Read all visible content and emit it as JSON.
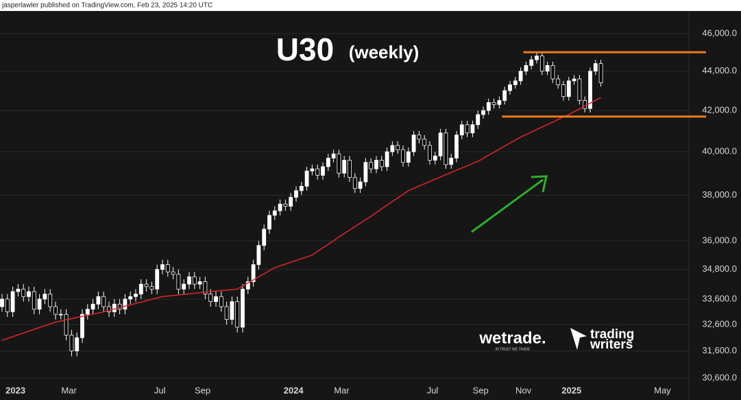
{
  "header": {
    "byline": "jasperlawler published on TradingView.com, Feb 23, 2025 14:20 UTC"
  },
  "logos": {
    "wetrade": "wetrade.",
    "wetrade_tagline": "IN TRUST WE TRADE",
    "trading": "trading",
    "writers": "writers"
  },
  "chart_data": {
    "type": "candlestick",
    "title": "U30",
    "subtitle": "(weekly)",
    "log_scale": true,
    "up_color": "#ffffff",
    "down_color": "#000000",
    "wick_color": "#ffffff",
    "grid": true,
    "ylim": [
      30430,
      47250
    ],
    "yticks": [
      {
        "value": 30600,
        "label": "30,600.0"
      },
      {
        "value": 31600,
        "label": "31,600.0"
      },
      {
        "value": 32600,
        "label": "32,600.0"
      },
      {
        "value": 33600,
        "label": "33,600.0"
      },
      {
        "value": 34800,
        "label": "34,800.0"
      },
      {
        "value": 36000,
        "label": "36,000.0"
      },
      {
        "value": 38000,
        "label": "38,000.0"
      },
      {
        "value": 40000,
        "label": "40,000.0"
      },
      {
        "value": 42000,
        "label": "42,000.0"
      },
      {
        "value": 44000,
        "label": "44,000.0"
      },
      {
        "value": 46000,
        "label": "46,000.0"
      }
    ],
    "categories": [
      null,
      null,
      "2023",
      null,
      null,
      null,
      null,
      null,
      null,
      null,
      null,
      null,
      "Mar",
      null,
      null,
      null,
      null,
      null,
      null,
      null,
      null,
      null,
      null,
      null,
      null,
      null,
      null,
      null,
      null,
      "Jul",
      null,
      null,
      null,
      null,
      null,
      null,
      null,
      "Sep",
      null,
      null,
      null,
      null,
      null,
      null,
      null,
      null,
      null,
      null,
      null,
      null,
      null,
      null,
      null,
      null,
      "2024",
      null,
      null,
      null,
      null,
      null,
      null,
      null,
      null,
      "Mar",
      null,
      null,
      null,
      null,
      null,
      null,
      null,
      null,
      null,
      null,
      null,
      null,
      null,
      null,
      null,
      null,
      "Jul",
      null,
      null,
      null,
      null,
      null,
      null,
      null,
      null,
      "Sep",
      null,
      null,
      null,
      null,
      null,
      null,
      null,
      "Nov",
      null,
      null,
      null,
      null,
      null,
      null,
      null,
      null,
      "2025",
      null,
      null,
      null,
      null,
      null,
      null,
      null,
      null,
      null,
      null,
      null,
      null,
      null,
      null,
      null,
      null,
      "May"
    ],
    "open": [
      33300,
      33600,
      33100,
      33900,
      34000,
      33700,
      33900,
      33200,
      33600,
      33800,
      33300,
      33000,
      33000,
      32200,
      31600,
      32100,
      33000,
      33200,
      33400,
      33700,
      33300,
      33100,
      33400,
      33200,
      33600,
      33700,
      33800,
      34200,
      34100,
      34000,
      34800,
      35000,
      34700,
      34600,
      34000,
      34200,
      34500,
      34200,
      34300,
      33800,
      33500,
      33700,
      33300,
      32800,
      33500,
      32500,
      34000,
      34300,
      35000,
      35800,
      36500,
      37100,
      37300,
      37600,
      37500,
      37900,
      38200,
      38400,
      39100,
      39200,
      38900,
      39300,
      39700,
      39900,
      39000,
      39600,
      38800,
      38300,
      38600,
      39500,
      39200,
      39600,
      39300,
      40000,
      40300,
      40100,
      39500,
      40000,
      40800,
      40600,
      40300,
      39600,
      39800,
      40900,
      39400,
      39700,
      40800,
      41300,
      40900,
      41300,
      41800,
      42000,
      42400,
      42300,
      42500,
      43000,
      43300,
      43500,
      44000,
      44300,
      44600,
      44800,
      44000,
      44300,
      43600,
      43300,
      42700,
      43500,
      43600,
      42500,
      42100,
      44000,
      44400,
      null,
      null,
      null,
      null,
      null,
      null,
      null,
      null,
      null,
      null,
      null
    ],
    "high": [
      33800,
      33800,
      34100,
      34200,
      34200,
      34100,
      34100,
      33800,
      34000,
      34000,
      33500,
      33200,
      33200,
      32400,
      32300,
      33200,
      33400,
      33600,
      33900,
      33900,
      33500,
      33600,
      33600,
      33800,
      33900,
      34000,
      34400,
      34400,
      34300,
      35000,
      35200,
      35200,
      34900,
      34800,
      34400,
      34700,
      34700,
      34500,
      34500,
      34000,
      33900,
      33900,
      33500,
      33700,
      33700,
      34200,
      34500,
      35200,
      36000,
      36700,
      37300,
      37500,
      37800,
      37800,
      38100,
      38400,
      38600,
      39300,
      39400,
      39400,
      39500,
      39900,
      40100,
      40100,
      39800,
      39800,
      39000,
      38800,
      39700,
      39700,
      39800,
      39800,
      40200,
      40500,
      40500,
      40300,
      40200,
      41000,
      41000,
      40800,
      40500,
      40000,
      41100,
      41100,
      39900,
      41000,
      41500,
      41500,
      41500,
      42000,
      42200,
      42600,
      42600,
      42700,
      43200,
      43500,
      43700,
      44200,
      44500,
      44800,
      45000,
      45000,
      44500,
      44500,
      43800,
      43500,
      43700,
      43800,
      43800,
      42700,
      44200,
      44600,
      44600,
      null,
      null,
      null,
      null,
      null,
      null,
      null,
      null,
      null,
      null,
      null
    ],
    "low": [
      33100,
      32900,
      32900,
      33700,
      33500,
      33500,
      33000,
      33000,
      33400,
      33100,
      32800,
      32800,
      32000,
      31400,
      31400,
      31900,
      32800,
      33000,
      33200,
      33100,
      32900,
      32900,
      33000,
      33000,
      33400,
      33500,
      33600,
      33900,
      33800,
      33800,
      34600,
      34500,
      34400,
      33800,
      33800,
      34000,
      34000,
      34000,
      33600,
      33300,
      33300,
      33100,
      32600,
      32600,
      32300,
      32300,
      33800,
      34100,
      34800,
      35600,
      36300,
      36900,
      37100,
      37300,
      37300,
      37700,
      38000,
      38200,
      38900,
      38700,
      38700,
      39100,
      39500,
      38800,
      38800,
      38600,
      38100,
      38100,
      38400,
      39000,
      39000,
      39100,
      39100,
      39800,
      39900,
      39300,
      39300,
      39800,
      40400,
      40100,
      39400,
      39400,
      39600,
      39200,
      39200,
      39500,
      40600,
      40700,
      40700,
      41100,
      41600,
      41800,
      42100,
      42100,
      42300,
      42800,
      43100,
      43300,
      43800,
      44100,
      44400,
      43800,
      43800,
      43400,
      43100,
      42500,
      42500,
      43300,
      42300,
      41900,
      41900,
      43800,
      43200,
      null,
      null,
      null,
      null,
      null,
      null,
      null,
      null,
      null,
      null,
      null
    ],
    "close": [
      33600,
      33100,
      33900,
      34000,
      33700,
      33900,
      33200,
      33600,
      33800,
      33300,
      33000,
      33000,
      32200,
      31600,
      32100,
      33000,
      33200,
      33400,
      33700,
      33300,
      33100,
      33400,
      33200,
      33600,
      33700,
      33800,
      34200,
      34100,
      34000,
      34800,
      35000,
      34700,
      34600,
      34000,
      34200,
      34500,
      34200,
      34300,
      33800,
      33500,
      33700,
      33300,
      32800,
      33500,
      32500,
      34000,
      34300,
      35000,
      35800,
      36500,
      37100,
      37300,
      37600,
      37500,
      37900,
      38200,
      38400,
      39100,
      39200,
      38900,
      39300,
      39700,
      39900,
      39000,
      39600,
      38800,
      38300,
      38600,
      39500,
      39200,
      39600,
      39300,
      40000,
      40300,
      40100,
      39500,
      40000,
      40800,
      40600,
      40300,
      39600,
      39800,
      40900,
      39400,
      39700,
      40800,
      41300,
      40900,
      41300,
      41800,
      42000,
      42400,
      42300,
      42500,
      43000,
      43300,
      43500,
      44000,
      44300,
      44600,
      44800,
      44000,
      44300,
      43600,
      43300,
      42700,
      43500,
      43600,
      42500,
      42100,
      44000,
      44400,
      43400,
      null,
      null,
      null,
      null,
      null,
      null,
      null,
      null,
      null,
      null,
      null
    ],
    "ma": {
      "color": "#e0262b",
      "values": [
        32000,
        32070,
        32140,
        32210,
        32280,
        32350,
        32420,
        32490,
        32560,
        32630,
        32700,
        32740,
        32790,
        32830,
        32880,
        32920,
        32960,
        33010,
        33050,
        33100,
        33150,
        33210,
        33260,
        33320,
        33370,
        33430,
        33480,
        33540,
        33590,
        33650,
        33700,
        33720,
        33740,
        33770,
        33790,
        33810,
        33830,
        33860,
        33880,
        33900,
        33920,
        33940,
        33960,
        33980,
        34000,
        34120,
        34250,
        34370,
        34500,
        34620,
        34750,
        34870,
        34950,
        35020,
        35100,
        35170,
        35250,
        35320,
        35400,
        35550,
        35700,
        35850,
        36000,
        36160,
        36310,
        36460,
        36610,
        36760,
        36910,
        37060,
        37220,
        37390,
        37550,
        37710,
        37870,
        38040,
        38200,
        38300,
        38410,
        38510,
        38620,
        38720,
        38820,
        38930,
        39030,
        39140,
        39240,
        39340,
        39450,
        39550,
        39690,
        39840,
        39980,
        40120,
        40270,
        40410,
        40560,
        40700,
        40820,
        40940,
        41070,
        41190,
        41310,
        41430,
        41560,
        41680,
        41800,
        41940,
        42080,
        42230,
        42370,
        42510,
        42650,
        null,
        null,
        null,
        null,
        null,
        null,
        null,
        null,
        null,
        null,
        null
      ]
    },
    "hlines": {
      "color": "#f07a20",
      "values": [
        45000,
        41700
      ]
    }
  }
}
